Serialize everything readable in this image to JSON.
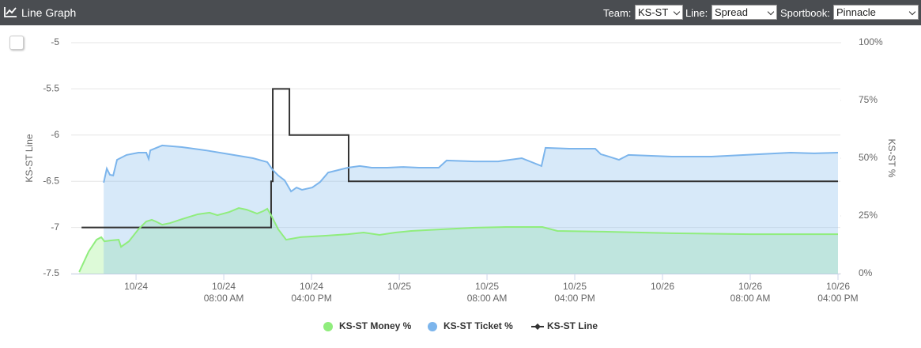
{
  "header": {
    "title": "Line Graph",
    "filters": [
      {
        "label": "Team:",
        "value": "KS-ST"
      },
      {
        "label": "Line:",
        "value": "Spread"
      },
      {
        "label": "Sportbook:",
        "value": "Pinnacle"
      }
    ]
  },
  "chart_data": {
    "type": "line",
    "y_label": "KS-ST Line",
    "y2_label": "KS-ST %",
    "ylim": [
      -7.5,
      -5
    ],
    "yticks": [
      -5,
      -5.5,
      -6,
      -6.5,
      -7,
      -7.5
    ],
    "y2lim": [
      0,
      100
    ],
    "y2ticks": [
      {
        "value": 0,
        "label": "0%"
      },
      {
        "value": 25,
        "label": "25%"
      },
      {
        "value": 50,
        "label": "50%"
      },
      {
        "value": 75,
        "label": "75%"
      },
      {
        "value": 100,
        "label": "100%"
      }
    ],
    "xlim": [
      "10/23 18:05",
      "10/26 16:13"
    ],
    "xticks": [
      {
        "value": "10/24 00:00",
        "label": "10/24"
      },
      {
        "value": "10/24 08:00",
        "label": "10/24 08:00 AM"
      },
      {
        "value": "10/24 16:00",
        "label": "10/24 04:00 PM"
      },
      {
        "value": "10/25 00:00",
        "label": "10/25"
      },
      {
        "value": "10/25 08:00",
        "label": "10/25 08:00 AM"
      },
      {
        "value": "10/25 16:00",
        "label": "10/25 04:00 PM"
      },
      {
        "value": "10/26 00:00",
        "label": "10/26"
      },
      {
        "value": "10/26 08:00",
        "label": "10/26 08:00 AM"
      },
      {
        "value": "10/26 16:00",
        "label": "10/26 04:00 PM"
      }
    ],
    "grid": true,
    "series": [
      {
        "name": "KS-ST Money %",
        "color": "#90ed7d",
        "axis": "y2",
        "area": true,
        "x": [
          "10/23 18:49",
          "10/23 19:41",
          "10/23 20:24",
          "10/23 20:50",
          "10/23 21:07",
          "10/23 21:42",
          "10/23 22:25",
          "10/23 22:38",
          "10/23 23:21",
          "10/24 00:13",
          "10/24 00:56",
          "10/24 01:26",
          "10/24 01:48",
          "10/24 02:23",
          "10/24 03:06",
          "10/24 04:11",
          "10/24 05:37",
          "10/24 06:42",
          "10/24 07:25",
          "10/24 08:30",
          "10/24 09:22",
          "10/24 10:05",
          "10/24 11:02",
          "10/24 11:36",
          "10/24 11:58",
          "10/24 12:19",
          "10/24 12:58",
          "10/24 13:41",
          "10/24 14:59",
          "10/24 17:09",
          "10/24 19:19",
          "10/24 20:45",
          "10/24 22:12",
          "10/24 23:38",
          "10/25 01:05",
          "10/25 03:58",
          "10/25 06:51",
          "10/25 09:44",
          "10/25 13:03",
          "10/25 14:25",
          "10/25 18:23",
          "10/26 00:52",
          "10/26 08:04",
          "10/26 16:00"
        ],
        "values": [
          0.7,
          9.6,
          14.7,
          15.8,
          14.0,
          14.4,
          14.7,
          11.6,
          14.0,
          19.2,
          22.6,
          23.3,
          22.6,
          21.2,
          21.9,
          23.6,
          25.7,
          26.4,
          25.3,
          26.7,
          28.4,
          27.7,
          26.0,
          27.1,
          28.1,
          25.3,
          19.2,
          14.7,
          15.8,
          16.4,
          17.1,
          17.8,
          16.8,
          17.8,
          18.5,
          19.2,
          19.9,
          20.2,
          20.2,
          18.5,
          18.2,
          17.5,
          17.1,
          17.1
        ]
      },
      {
        "name": "KS-ST Ticket %",
        "color": "#7cb5ec",
        "axis": "y2",
        "area": true,
        "x": [
          "10/23 21:03",
          "10/23 21:20",
          "10/23 21:37",
          "10/23 21:55",
          "10/23 22:16",
          "10/23 23:08",
          "10/24 00:13",
          "10/24 00:56",
          "10/24 01:09",
          "10/24 01:18",
          "10/24 02:23",
          "10/24 04:11",
          "10/24 06:21",
          "10/24 08:30",
          "10/24 10:40",
          "10/24 11:58",
          "10/24 12:28",
          "10/24 12:58",
          "10/24 13:33",
          "10/24 14:08",
          "10/24 14:38",
          "10/24 15:08",
          "10/24 16:04",
          "10/24 16:47",
          "10/24 17:31",
          "10/24 19:19",
          "10/24 20:24",
          "10/24 21:29",
          "10/24 22:55",
          "10/25 00:22",
          "10/25 01:48",
          "10/25 03:36",
          "10/25 04:19",
          "10/25 06:51",
          "10/25 09:01",
          "10/25 11:10",
          "10/25 12:58",
          "10/25 13:20",
          "10/25 15:30",
          "10/25 17:52",
          "10/25 18:23",
          "10/25 19:06",
          "10/25 20:02",
          "10/25 20:54",
          "10/26 00:52",
          "10/26 04:28",
          "10/26 08:47",
          "10/26 11:41",
          "10/26 13:50",
          "10/26 16:00"
        ],
        "values": [
          39.4,
          45.5,
          42.8,
          42.5,
          49.3,
          51.4,
          52.4,
          52.4,
          49.7,
          53.4,
          55.5,
          54.8,
          53.4,
          51.7,
          50.0,
          48.3,
          44.9,
          42.5,
          40.4,
          35.6,
          37.3,
          36.3,
          37.3,
          39.7,
          43.8,
          45.9,
          46.6,
          45.9,
          45.9,
          46.2,
          45.9,
          45.9,
          49.0,
          48.6,
          48.6,
          50.0,
          46.6,
          54.5,
          54.1,
          54.1,
          51.7,
          50.7,
          49.3,
          51.4,
          50.7,
          50.7,
          51.7,
          52.4,
          52.1,
          52.4
        ]
      },
      {
        "name": "KS-ST Line",
        "color": "#333333",
        "axis": "y",
        "step": true,
        "x": [
          "10/23 19:02",
          "10/24 12:19",
          "10/24 12:28",
          "10/24 13:59",
          "10/24 19:23",
          "10/26 16:00"
        ],
        "values": [
          -7,
          -6.5,
          -5.5,
          -6,
          -6.5,
          -6.5
        ]
      }
    ]
  }
}
